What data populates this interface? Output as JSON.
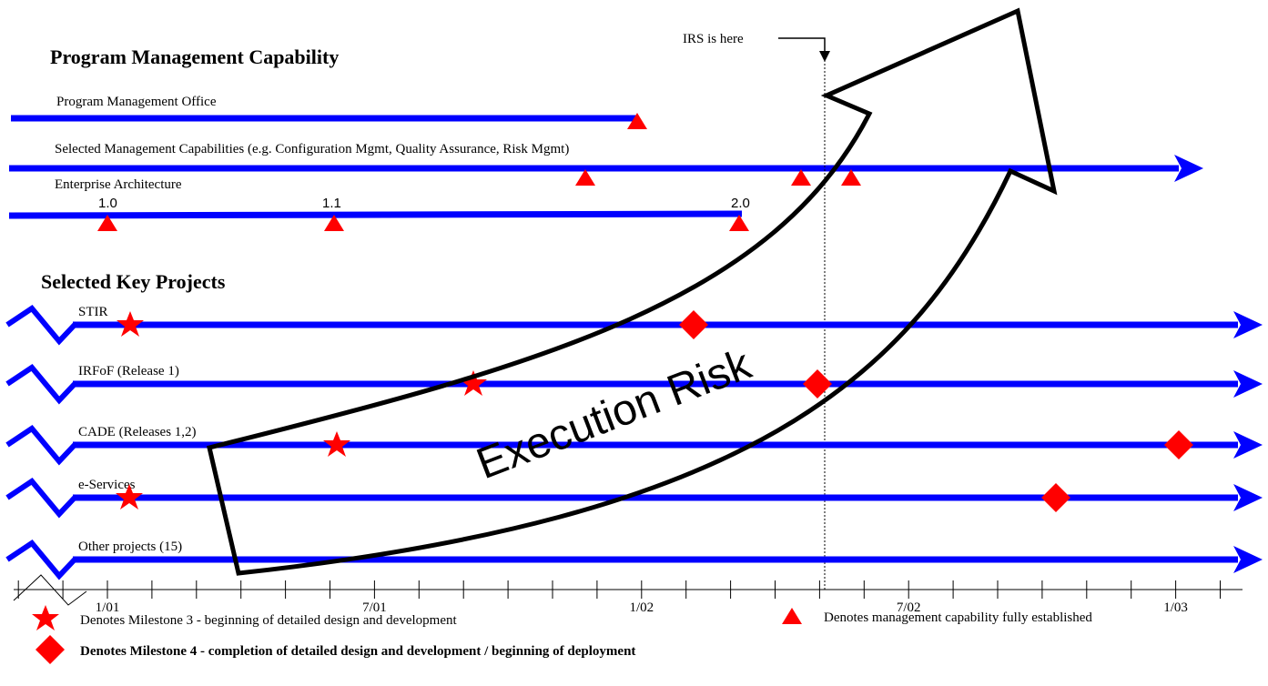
{
  "header": {
    "capability_title": "Program Management Capability",
    "projects_title": "Selected Key Projects"
  },
  "capabilities": [
    {
      "label": "Program Management Office"
    },
    {
      "label": "Selected Management Capabilities (e.g. Configuration Mgmt, Quality Assurance, Risk Mgmt)"
    },
    {
      "label": "Enterprise Architecture",
      "versions": [
        "1.0",
        "1.1",
        "2.0"
      ]
    }
  ],
  "projects": [
    "STIR",
    "IRFoF (Release 1)",
    "CADE (Releases 1,2)",
    "e-Services",
    "Other projects (15)"
  ],
  "timeline": [
    "1/01",
    "7/01",
    "1/02",
    "7/02",
    "1/03"
  ],
  "marker": "IRS is here",
  "overlay": "Execution Risk",
  "legend": {
    "milestone3": "Denotes Milestone 3 - beginning of detailed design and development",
    "capability": "Denotes management capability fully established",
    "milestone4": "Denotes Milestone 4 - completion of detailed design and development /  beginning of deployment"
  }
}
